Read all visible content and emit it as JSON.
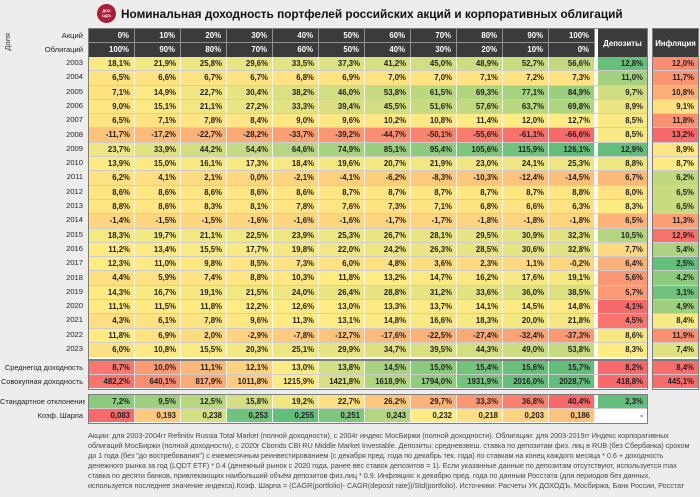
{
  "title": "Номинальная доходность портфелей российских акций и корпоративных облигаций",
  "logo": {
    "text": "ДОХОДЪ"
  },
  "labels": {
    "share": "Доля",
    "stocks": "Акций",
    "bonds": "Облигаций",
    "deposits": "Депозиты",
    "inflation": "Инфляция"
  },
  "colors": {
    "scale_red": "#F8696B",
    "scale_yellow": "#FFEB84",
    "scale_green": "#63BE7B",
    "header_bg": "#3b3b3b",
    "logo_bg": "#a81e3d",
    "blank_cell": "#ffffff"
  },
  "chart_data": {
    "type": "heatmap",
    "title": "Номинальная доходность портфелей российских акций и корпоративных облигаций",
    "columns_stocks": [
      "0%",
      "10%",
      "20%",
      "30%",
      "40%",
      "50%",
      "60%",
      "70%",
      "80%",
      "90%",
      "100%"
    ],
    "columns_bonds": [
      "100%",
      "90%",
      "80%",
      "70%",
      "60%",
      "50%",
      "40%",
      "30%",
      "20%",
      "10%",
      "0%"
    ],
    "extra_columns": [
      "Депозиты",
      "Инфляция"
    ],
    "rows": [
      {
        "year": "2003",
        "values": [
          "18,1%",
          "21,9%",
          "25,8%",
          "29,6%",
          "33,5%",
          "37,3%",
          "41,2%",
          "45,0%",
          "48,9%",
          "52,7%",
          "56,6%"
        ],
        "deposit": "12,8%",
        "inflation": "12,0%"
      },
      {
        "year": "2004",
        "values": [
          "6,5%",
          "6,6%",
          "6,7%",
          "6,7%",
          "6,8%",
          "6,9%",
          "7,0%",
          "7,0%",
          "7,1%",
          "7,2%",
          "7,3%"
        ],
        "deposit": "11,0%",
        "inflation": "11,7%"
      },
      {
        "year": "2005",
        "values": [
          "7,1%",
          "14,9%",
          "22,7%",
          "30,4%",
          "38,2%",
          "46,0%",
          "53,8%",
          "61,5%",
          "69,3%",
          "77,1%",
          "84,9%"
        ],
        "deposit": "9,7%",
        "inflation": "10,8%"
      },
      {
        "year": "2006",
        "values": [
          "9,0%",
          "15,1%",
          "21,1%",
          "27,2%",
          "33,3%",
          "39,4%",
          "45,5%",
          "51,6%",
          "57,6%",
          "63,7%",
          "69,8%"
        ],
        "deposit": "8,9%",
        "inflation": "9,1%"
      },
      {
        "year": "2007",
        "values": [
          "6,5%",
          "7,1%",
          "7,8%",
          "8,4%",
          "9,0%",
          "9,6%",
          "10,2%",
          "10,8%",
          "11,4%",
          "12,0%",
          "12,7%"
        ],
        "deposit": "8,5%",
        "inflation": "11,8%"
      },
      {
        "year": "2008",
        "values": [
          "-11,7%",
          "-17,2%",
          "-22,7%",
          "-28,2%",
          "-33,7%",
          "-39,2%",
          "-44,7%",
          "-50,1%",
          "-55,6%",
          "-61,1%",
          "-66,6%"
        ],
        "deposit": "8,5%",
        "inflation": "13,2%"
      },
      {
        "year": "2009",
        "values": [
          "23,7%",
          "33,9%",
          "44,2%",
          "54,4%",
          "64,6%",
          "74,9%",
          "85,1%",
          "95,4%",
          "105,6%",
          "115,9%",
          "126,1%"
        ],
        "deposit": "12,9%",
        "inflation": "8,9%"
      },
      {
        "year": "2010",
        "values": [
          "13,9%",
          "15,0%",
          "16,1%",
          "17,3%",
          "18,4%",
          "19,6%",
          "20,7%",
          "21,9%",
          "23,0%",
          "24,1%",
          "25,3%"
        ],
        "deposit": "8,8%",
        "inflation": "8,7%"
      },
      {
        "year": "2011",
        "values": [
          "6,2%",
          "4,1%",
          "2,1%",
          "0,0%",
          "-2,1%",
          "-4,1%",
          "-6,2%",
          "-8,3%",
          "-10,3%",
          "-12,4%",
          "-14,5%"
        ],
        "deposit": "6,7%",
        "inflation": "6,2%"
      },
      {
        "year": "2012",
        "values": [
          "8,6%",
          "8,6%",
          "8,6%",
          "8,6%",
          "8,6%",
          "8,7%",
          "8,7%",
          "8,7%",
          "8,7%",
          "8,7%",
          "8,8%"
        ],
        "deposit": "8,0%",
        "inflation": "6,5%"
      },
      {
        "year": "2013",
        "values": [
          "8,8%",
          "8,6%",
          "8,3%",
          "8,1%",
          "7,8%",
          "7,6%",
          "7,3%",
          "7,1%",
          "6,8%",
          "6,6%",
          "6,3%"
        ],
        "deposit": "8,3%",
        "inflation": "6,5%"
      },
      {
        "year": "2014",
        "values": [
          "-1,4%",
          "-1,5%",
          "-1,5%",
          "-1,6%",
          "-1,6%",
          "-1,6%",
          "-1,7%",
          "-1,7%",
          "-1,8%",
          "-1,8%",
          "-1,8%"
        ],
        "deposit": "6,5%",
        "inflation": "11,3%"
      },
      {
        "year": "2015",
        "values": [
          "18,3%",
          "19,7%",
          "21,1%",
          "22,5%",
          "23,9%",
          "25,3%",
          "26,7%",
          "28,1%",
          "29,5%",
          "30,9%",
          "32,3%"
        ],
        "deposit": "10,5%",
        "inflation": "12,9%"
      },
      {
        "year": "2016",
        "values": [
          "11,2%",
          "13,4%",
          "15,5%",
          "17,7%",
          "19,8%",
          "22,0%",
          "24,2%",
          "26,3%",
          "28,5%",
          "30,6%",
          "32,8%"
        ],
        "deposit": "7,7%",
        "inflation": "5,4%"
      },
      {
        "year": "2017",
        "values": [
          "12,3%",
          "11,0%",
          "9,8%",
          "8,5%",
          "7,3%",
          "6,0%",
          "4,8%",
          "3,6%",
          "2,3%",
          "1,1%",
          "-0,2%"
        ],
        "deposit": "6,4%",
        "inflation": "2,5%"
      },
      {
        "year": "2018",
        "values": [
          "4,4%",
          "5,9%",
          "7,4%",
          "8,8%",
          "10,3%",
          "11,8%",
          "13,2%",
          "14,7%",
          "16,2%",
          "17,6%",
          "19,1%"
        ],
        "deposit": "5,6%",
        "inflation": "4,2%"
      },
      {
        "year": "2019",
        "values": [
          "14,3%",
          "16,7%",
          "19,1%",
          "21,5%",
          "24,0%",
          "26,4%",
          "28,8%",
          "31,2%",
          "33,6%",
          "36,0%",
          "38,5%"
        ],
        "deposit": "5,7%",
        "inflation": "3,1%"
      },
      {
        "year": "2020",
        "values": [
          "11,1%",
          "11,5%",
          "11,8%",
          "12,2%",
          "12,6%",
          "13,0%",
          "13,3%",
          "13,7%",
          "14,1%",
          "14,5%",
          "14,8%"
        ],
        "deposit": "4,1%",
        "inflation": "4,9%"
      },
      {
        "year": "2021",
        "values": [
          "4,3%",
          "6,1%",
          "7,8%",
          "9,6%",
          "11,3%",
          "13,1%",
          "14,8%",
          "16,6%",
          "18,3%",
          "20,0%",
          "21,8%"
        ],
        "deposit": "4,5%",
        "inflation": "8,4%"
      },
      {
        "year": "2022",
        "values": [
          "11,8%",
          "6,9%",
          "2,0%",
          "-2,9%",
          "-7,8%",
          "-12,7%",
          "-17,6%",
          "-22,5%",
          "-27,4%",
          "-32,4%",
          "-37,3%"
        ],
        "deposit": "8,6%",
        "inflation": "11,9%"
      },
      {
        "year": "2023",
        "values": [
          "6,0%",
          "10,8%",
          "15,5%",
          "20,3%",
          "25,1%",
          "29,9%",
          "34,7%",
          "39,5%",
          "44,3%",
          "49,0%",
          "53,8%"
        ],
        "deposit": "8,3%",
        "inflation": "7,4%"
      }
    ],
    "summary_rows": [
      {
        "label": "Среднегод доходность",
        "values": [
          "8,7%",
          "10,0%",
          "11,1%",
          "12,1%",
          "13,0%",
          "13,8%",
          "14,5%",
          "15,0%",
          "15,4%",
          "15,6%",
          "15,7%"
        ],
        "deposit": "8,2%",
        "inflation": "8,4%",
        "color_scale": "red-low"
      },
      {
        "label": "Совокупная доходность",
        "values": [
          "482,2%",
          "640,1%",
          "817,9%",
          "1011,8%",
          "1215,9%",
          "1421,8%",
          "1618,9%",
          "1794,0%",
          "1931,9%",
          "2016,0%",
          "2028,7%"
        ],
        "deposit": "418,8%",
        "inflation": "445,1%",
        "color_scale": "red-low"
      },
      {
        "label": "Стандартное отклонение",
        "values": [
          "7,2%",
          "9,5%",
          "12,5%",
          "15,8%",
          "19,2%",
          "22,7%",
          "26,2%",
          "29,7%",
          "33,3%",
          "36,8%",
          "40,4%"
        ],
        "deposit": "2,3%",
        "inflation": null,
        "color_scale": "green-low"
      },
      {
        "label": "Коэф. Шарпа",
        "values": [
          "0,083",
          "0,193",
          "0,238",
          "0,253",
          "0,255",
          "0,251",
          "0,243",
          "0,232",
          "0,218",
          "0,203",
          "0,186"
        ],
        "deposit": "-",
        "inflation": null,
        "color_scale": "red-low"
      }
    ],
    "layout_hints": {
      "matrix_color_scale": "red-yellow-green, min / median / max over all year cells",
      "deposit_column_scale": "red-yellow-green over deposit column values",
      "inflation_column_scale": "green-yellow-red (low inflation = green)",
      "summary_rows_scale": "per-row, including deposit and inflation cells"
    }
  },
  "footnote_lines": [
    "Акции: для 2003-2004гг Refinitiv Russia Total Market (полной доходности), с 2004г индекс МосБиржи (полной доходности). Облигации: для 2003-2019гг Индекс корпоративных",
    "облигаций МосБиржи (полной доходности), с 2020г Cbonds CBI RU Middle Market Investable. Депозиты: средневзвеш. ставка по  депозитам физ. лиц в RUB (без Сбербанка) сроком",
    "до 1 года (без \"до востребования\") с ежемесячным реинвестированием (с декабря пред. года по декабрь тек. года) по ставкам на конец каждого месяца * 0.6 + доходность",
    "денежного рынка за год (LQDT ETF) * 0.4 (денежный рынок с 2020 года, ранее вес ставок депозитов = 1). Если указанные данные по депозитам отсутствуют, используется max",
    "ставка по десяти банков, привлекающих наибольший объём депозитов физ.лиц * 0.9. Инфляция: к декабрю пред. года по данным Росстата (для периодов без данных,",
    "используется последнее значение индекса).Коэф. Шарпа = (CAGR(portfolio)- CAGR(deposit rate))/Std(portfolio). Источники: Расчеты УК ДОХОДЪ, Мосбиржа, Банк России, Росстат"
  ]
}
